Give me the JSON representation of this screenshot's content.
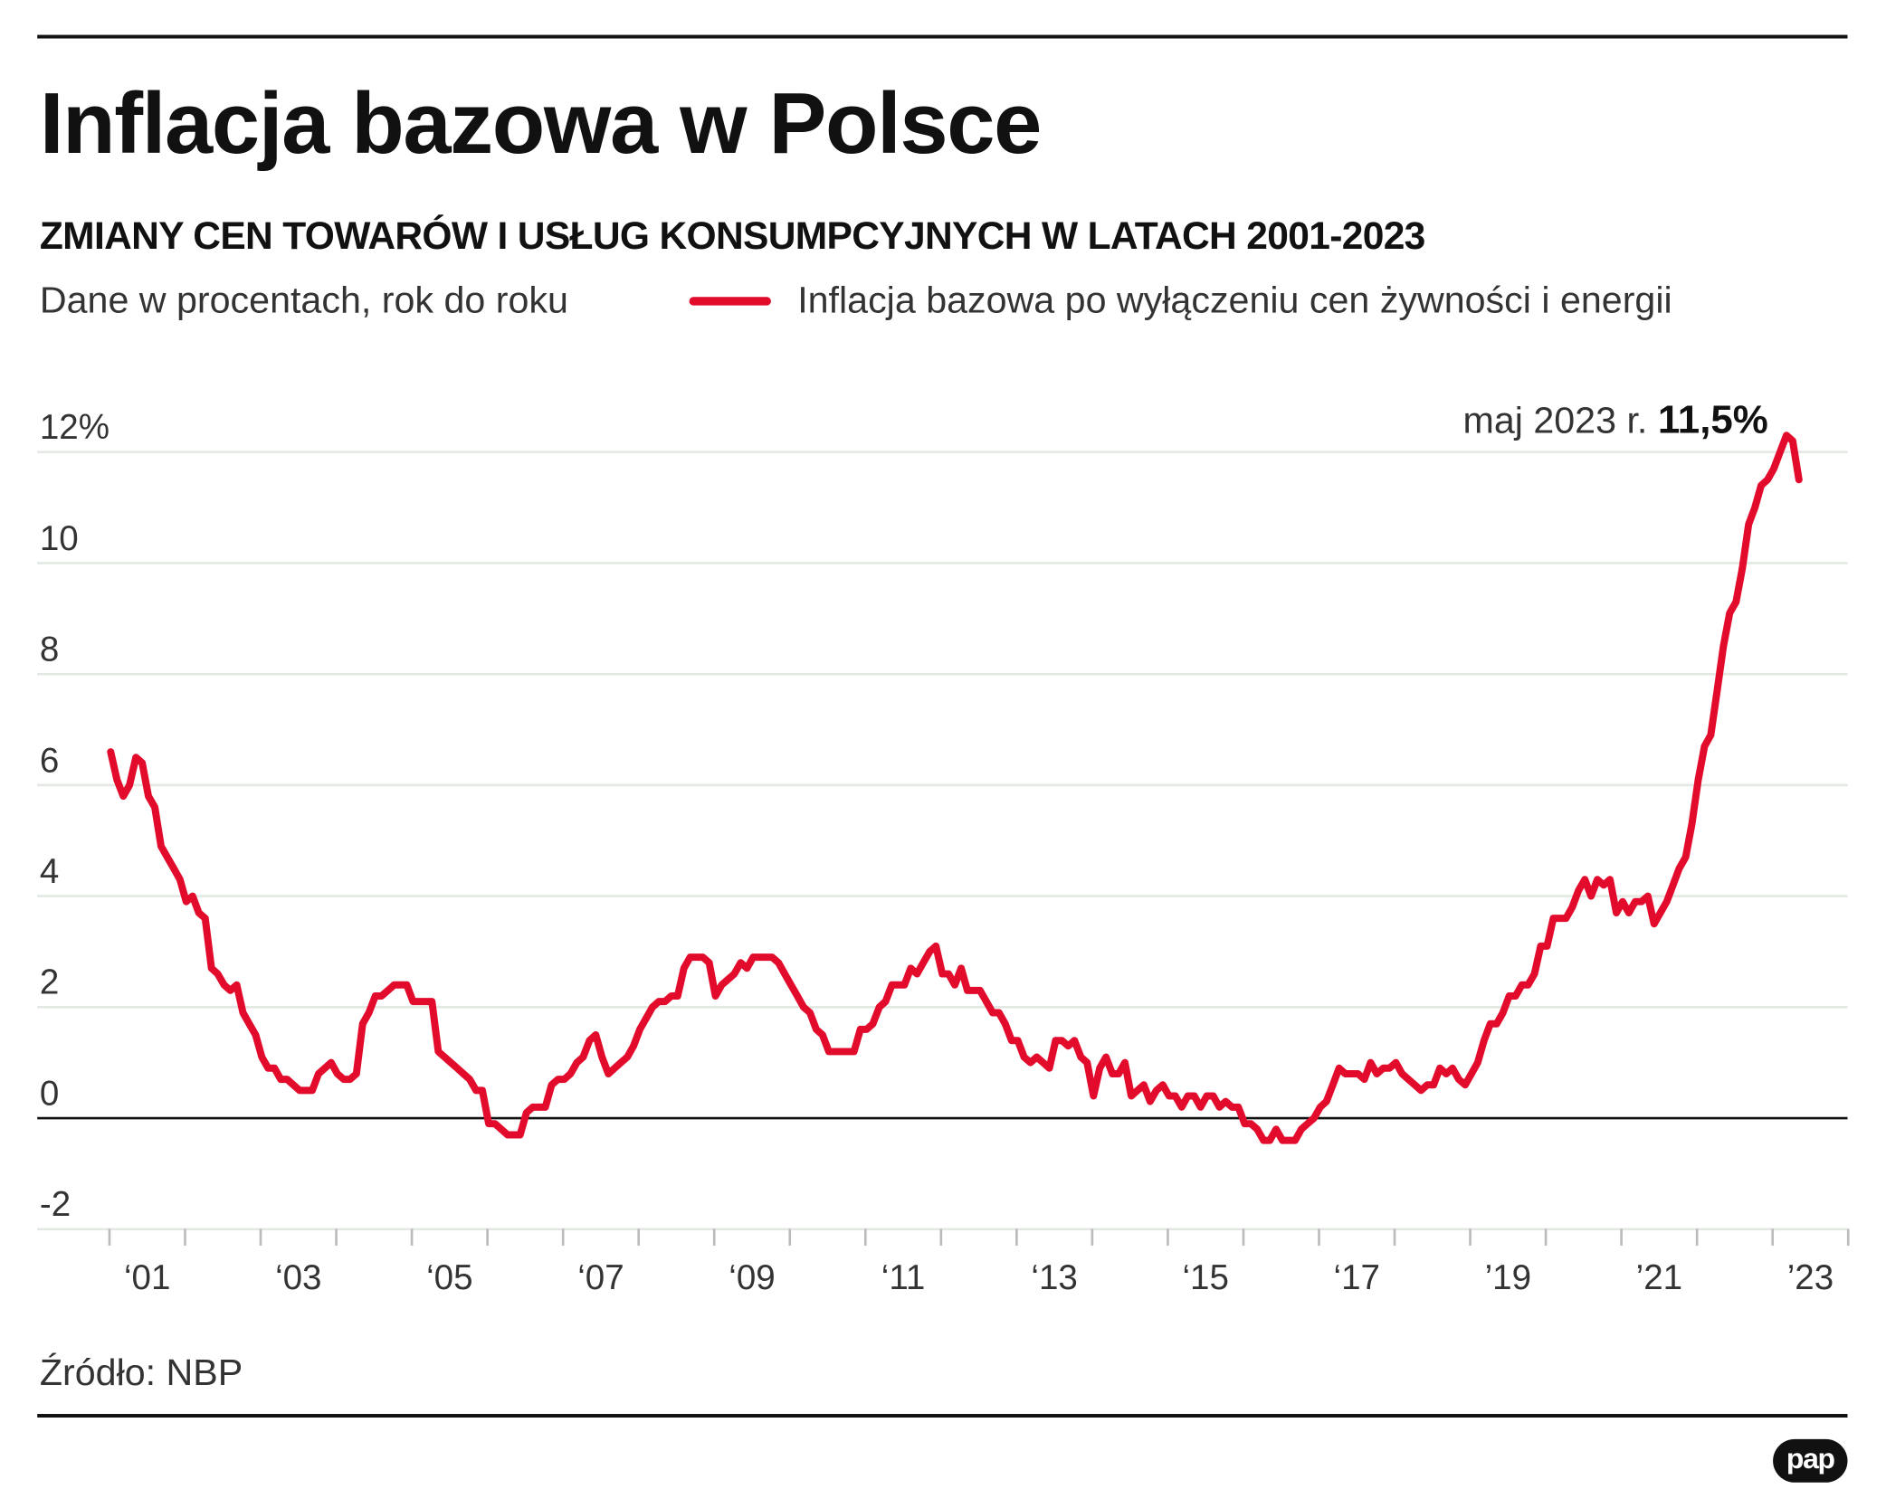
{
  "header": {
    "title": "Inflacja bazowa w Polsce",
    "subtitle": "ZMIANY CEN TOWARÓW I USŁUG KONSUMPCYJNYCH W LATACH 2001-2023",
    "units": "Dane w procentach, rok do roku",
    "legend_label": "Inflacja bazowa po wyłączeniu cen żywności i energii"
  },
  "annotation": {
    "label": "maj 2023 r.",
    "value": "11,5%"
  },
  "footer": {
    "source": "Źródło: NBP",
    "logo": "pap"
  },
  "colors": {
    "line": "#e30b2c",
    "grid": "#e3e8e3",
    "zero": "#111111"
  },
  "chart_data": {
    "type": "line",
    "title": "Inflacja bazowa w Polsce",
    "x_start": "2001-01",
    "x_end": "2023-05",
    "frequency": "monthly",
    "ylim": [
      -2,
      12
    ],
    "y_ticks": [
      "-2",
      "0",
      "2",
      "4",
      "6",
      "8",
      "10",
      "12%"
    ],
    "y_tick_values": [
      -2,
      0,
      2,
      4,
      6,
      8,
      10,
      12
    ],
    "x_ticks": [
      "‘01",
      "‘03",
      "‘05",
      "‘07",
      "‘09",
      "‘11",
      "‘13",
      "‘15",
      "‘17",
      "’19",
      "’21",
      "’23"
    ],
    "x_tick_years": [
      2001,
      2003,
      2005,
      2007,
      2009,
      2011,
      2013,
      2015,
      2017,
      2019,
      2021,
      2023
    ],
    "grid": true,
    "legend_placement": "top",
    "series": [
      {
        "name": "Inflacja bazowa po wyłączeniu cen żywności i energii",
        "values": [
          6.6,
          6.1,
          5.8,
          6.0,
          6.5,
          6.4,
          5.8,
          5.6,
          4.9,
          4.7,
          4.5,
          4.3,
          3.9,
          4.0,
          3.7,
          3.6,
          2.7,
          2.6,
          2.4,
          2.3,
          2.4,
          1.9,
          1.7,
          1.5,
          1.1,
          0.9,
          0.9,
          0.7,
          0.7,
          0.6,
          0.5,
          0.5,
          0.5,
          0.8,
          0.9,
          1.0,
          0.8,
          0.7,
          0.7,
          0.8,
          1.7,
          1.9,
          2.2,
          2.2,
          2.3,
          2.4,
          2.4,
          2.4,
          2.1,
          2.1,
          2.1,
          2.1,
          1.2,
          1.1,
          1.0,
          0.9,
          0.8,
          0.7,
          0.5,
          0.5,
          -0.1,
          -0.1,
          -0.2,
          -0.3,
          -0.3,
          -0.3,
          0.1,
          0.2,
          0.2,
          0.2,
          0.6,
          0.7,
          0.7,
          0.8,
          1.0,
          1.1,
          1.4,
          1.5,
          1.1,
          0.8,
          0.9,
          1.0,
          1.1,
          1.3,
          1.6,
          1.8,
          2.0,
          2.1,
          2.1,
          2.2,
          2.2,
          2.7,
          2.9,
          2.9,
          2.9,
          2.8,
          2.2,
          2.4,
          2.5,
          2.6,
          2.8,
          2.7,
          2.9,
          2.9,
          2.9,
          2.9,
          2.8,
          2.6,
          2.4,
          2.2,
          2.0,
          1.9,
          1.6,
          1.5,
          1.2,
          1.2,
          1.2,
          1.2,
          1.2,
          1.6,
          1.6,
          1.7,
          2.0,
          2.1,
          2.4,
          2.4,
          2.4,
          2.7,
          2.6,
          2.8,
          3.0,
          3.1,
          2.6,
          2.6,
          2.4,
          2.7,
          2.3,
          2.3,
          2.3,
          2.1,
          1.9,
          1.9,
          1.7,
          1.4,
          1.4,
          1.1,
          1.0,
          1.1,
          1.0,
          0.9,
          1.4,
          1.4,
          1.3,
          1.4,
          1.1,
          1.0,
          0.4,
          0.9,
          1.1,
          0.8,
          0.8,
          1.0,
          0.4,
          0.5,
          0.6,
          0.3,
          0.5,
          0.6,
          0.4,
          0.4,
          0.2,
          0.4,
          0.4,
          0.2,
          0.4,
          0.4,
          0.2,
          0.3,
          0.2,
          0.2,
          -0.1,
          -0.1,
          -0.2,
          -0.4,
          -0.4,
          -0.2,
          -0.4,
          -0.4,
          -0.4,
          -0.2,
          -0.1,
          0.0,
          0.2,
          0.3,
          0.6,
          0.9,
          0.8,
          0.8,
          0.8,
          0.7,
          1.0,
          0.8,
          0.9,
          0.9,
          1.0,
          0.8,
          0.7,
          0.6,
          0.5,
          0.6,
          0.6,
          0.9,
          0.8,
          0.9,
          0.7,
          0.6,
          0.8,
          1.0,
          1.4,
          1.7,
          1.7,
          1.9,
          2.2,
          2.2,
          2.4,
          2.4,
          2.6,
          3.1,
          3.1,
          3.6,
          3.6,
          3.6,
          3.8,
          4.1,
          4.3,
          4.0,
          4.3,
          4.2,
          4.3,
          3.7,
          3.9,
          3.7,
          3.9,
          3.9,
          4.0,
          3.5,
          3.7,
          3.9,
          4.2,
          4.5,
          4.7,
          5.3,
          6.1,
          6.7,
          6.9,
          7.7,
          8.5,
          9.1,
          9.3,
          9.9,
          10.7,
          11.0,
          11.4,
          11.5,
          11.7,
          12.0,
          12.3,
          12.2,
          11.5
        ]
      }
    ]
  }
}
